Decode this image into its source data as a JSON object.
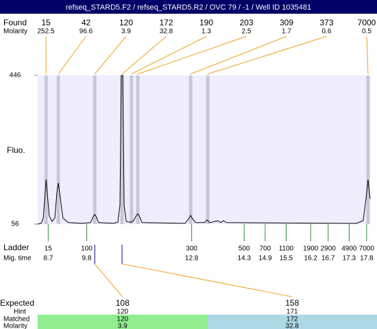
{
  "chart_data": {
    "type": "electropherogram",
    "title": "refseq_STARD5.F2 / refseq_STARD5.R2 / OVC 79 / -1 / Well ID 1035481",
    "found": {
      "label": "Found",
      "molarity_label": "Molarity",
      "peaks": [
        {
          "size": 15,
          "molarity": 252.5,
          "time": 8.64
        },
        {
          "size": 42,
          "molarity": 96.6,
          "time": 8.99
        },
        {
          "size": 120,
          "molarity": 3.9,
          "time": 10.03
        },
        {
          "size": 172,
          "molarity": 32.8,
          "time": 10.81
        },
        {
          "size": 190,
          "molarity": 1.3,
          "time": 11.08
        },
        {
          "size": 203,
          "molarity": 2.5,
          "time": 11.26
        },
        {
          "size": 309,
          "molarity": 1.7,
          "time": 12.77
        },
        {
          "size": 373,
          "molarity": 0.6,
          "time": 13.26
        },
        {
          "size": 7000,
          "molarity": 0.5,
          "time": 17.84
        }
      ]
    },
    "ylabel": "Fluo.",
    "ylim": [
      56,
      446
    ],
    "yticks": [
      56,
      446
    ],
    "xlim": [
      8.4,
      17.9
    ],
    "trace": {
      "color": "#000000",
      "x": [
        8.4,
        8.5,
        8.56,
        8.6,
        8.64,
        8.68,
        8.73,
        8.81,
        8.89,
        8.95,
        8.99,
        9.05,
        9.12,
        9.28,
        9.67,
        9.91,
        9.99,
        10.03,
        10.07,
        10.14,
        10.55,
        10.69,
        10.75,
        10.79,
        10.83,
        10.87,
        10.93,
        11.05,
        11.14,
        11.22,
        11.26,
        11.3,
        11.38,
        12.61,
        12.73,
        12.77,
        12.81,
        12.91,
        13.16,
        13.24,
        13.32,
        13.45,
        13.55,
        13.63,
        13.71,
        13.79,
        17.51,
        17.7,
        17.78,
        17.84,
        17.9
      ],
      "values": [
        56,
        58,
        72,
        122,
        173,
        131,
        78,
        63,
        72,
        140,
        164,
        122,
        72,
        60,
        58,
        60,
        76,
        81,
        76,
        60,
        58,
        61,
        105,
        446,
        446,
        105,
        63,
        61,
        65,
        79,
        83,
        78,
        60,
        58,
        72,
        79,
        72,
        60,
        60,
        67,
        60,
        63,
        65,
        60,
        65,
        60,
        58,
        65,
        122,
        173,
        122
      ]
    },
    "ladder": {
      "label": "Ladder",
      "time_label": "Mig. time",
      "sizes": [
        15,
        100,
        300,
        500,
        700,
        1100,
        1900,
        2900,
        4900,
        7000
      ],
      "times": [
        8.7,
        9.8,
        12.8,
        14.3,
        14.9,
        15.5,
        16.2,
        16.7,
        17.3,
        17.8
      ]
    },
    "expected": {
      "label": "Expected",
      "hint_label": "Hint",
      "matched_label": "Matched",
      "molarity_label": "Molarity",
      "items": [
        {
          "size": 108,
          "hint": 120,
          "matched": 120,
          "molarity": 3.9,
          "time": 10.03,
          "color": "#90ee90"
        },
        {
          "size": 158,
          "hint": 171,
          "matched": 172,
          "molarity": 32.8,
          "time": 10.81,
          "color": "#add8e6"
        }
      ]
    }
  }
}
